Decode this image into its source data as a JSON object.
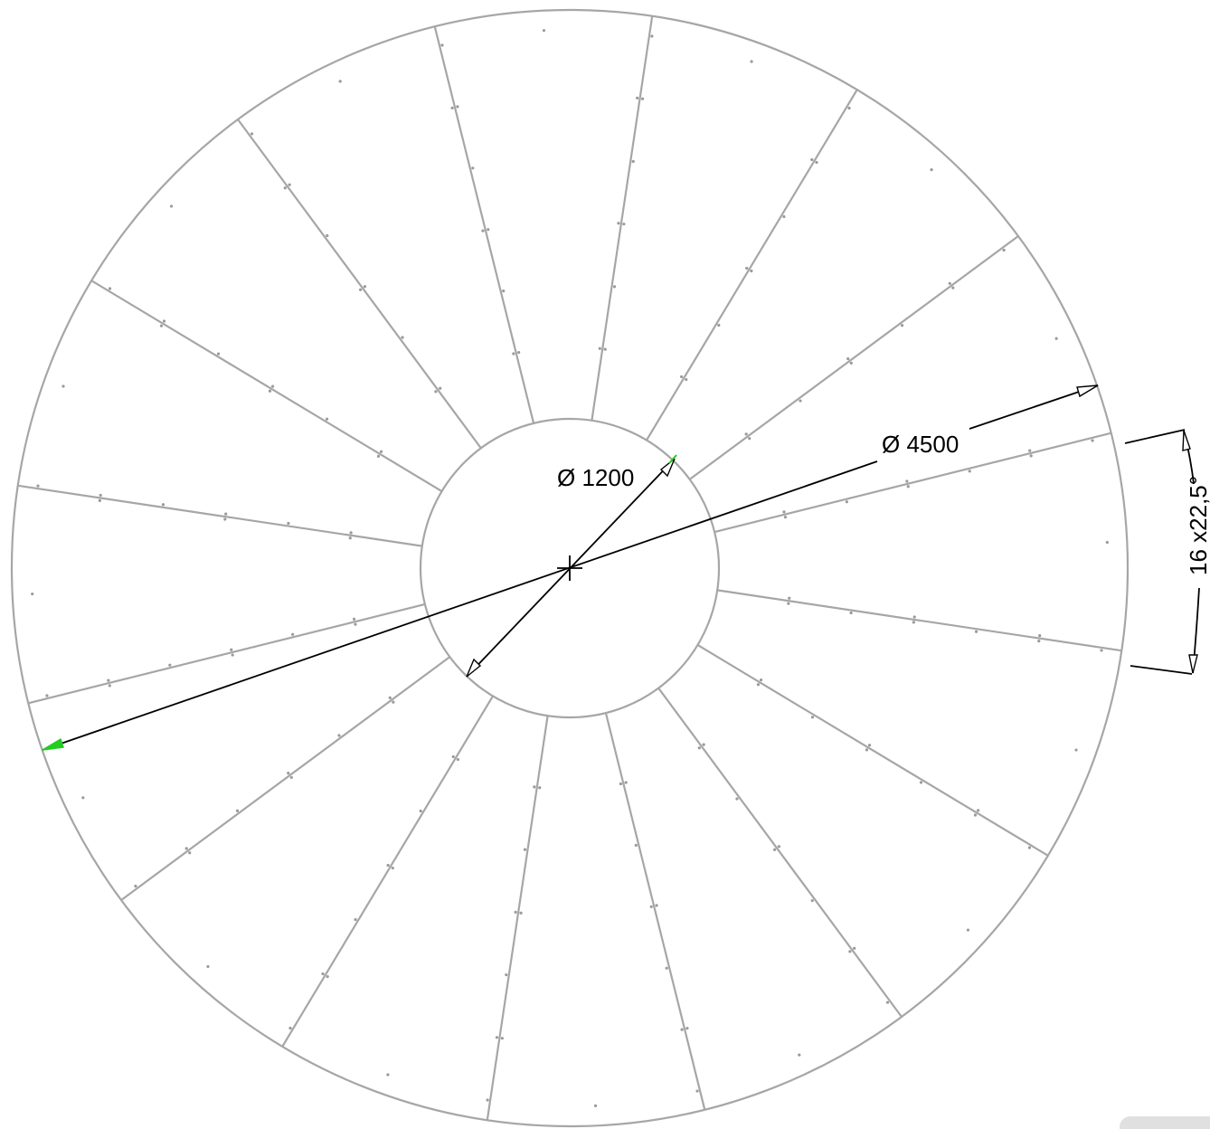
{
  "dimensions": {
    "outer_diameter": "Ø 4500",
    "inner_diameter": "Ø 1200",
    "angle": "16 x22,5°"
  },
  "segments": {
    "count": 16,
    "angle_deg": 22.5
  },
  "colors": {
    "geometry": "#a6a6a6",
    "dimension": "#000000",
    "grip": "#22cc22",
    "background": "#ffffff"
  }
}
